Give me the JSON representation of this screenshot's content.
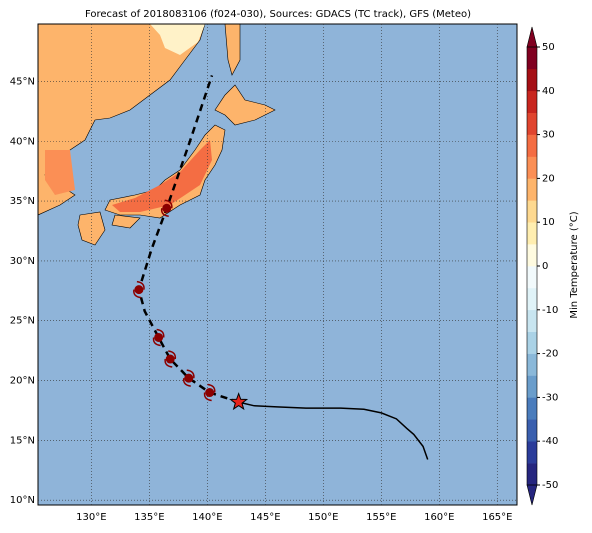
{
  "chart_data": {
    "type": "map",
    "title": "Forecast of 2018083106 (f024-030), Sources: GDACS (TC track), GFS (Meteo)",
    "xlim": [
      125.4,
      166.7
    ],
    "ylim": [
      9.6,
      49.8
    ],
    "grid": true,
    "xticks": [
      {
        "value": 130,
        "label": "130°E"
      },
      {
        "value": 135,
        "label": "135°E"
      },
      {
        "value": 140,
        "label": "140°E"
      },
      {
        "value": 145,
        "label": "145°E"
      },
      {
        "value": 150,
        "label": "150°E"
      },
      {
        "value": 155,
        "label": "155°E"
      },
      {
        "value": 160,
        "label": "160°E"
      },
      {
        "value": 165,
        "label": "165°E"
      }
    ],
    "yticks": [
      {
        "value": 10,
        "label": "10°N"
      },
      {
        "value": 15,
        "label": "15°N"
      },
      {
        "value": 20,
        "label": "20°N"
      },
      {
        "value": 25,
        "label": "25°N"
      },
      {
        "value": 30,
        "label": "30°N"
      },
      {
        "value": 35,
        "label": "35°N"
      },
      {
        "value": 40,
        "label": "40°N"
      },
      {
        "value": 45,
        "label": "45°N"
      }
    ],
    "past_track": {
      "style": "solid",
      "color": "#000000",
      "x": [
        159.0,
        158.6,
        157.8,
        157.2,
        156.3,
        155.0,
        153.5,
        151.5,
        148.5,
        146.0,
        144.0,
        142.7
      ],
      "y": [
        13.4,
        14.5,
        15.5,
        16.0,
        16.8,
        17.3,
        17.6,
        17.7,
        17.7,
        17.8,
        17.9,
        18.2
      ]
    },
    "forecast_track": {
      "style": "dashed",
      "color": "#000000",
      "x": [
        142.7,
        140.2,
        138.4,
        136.8,
        135.8,
        134.6,
        134.1,
        135.2,
        136.5,
        138.5,
        140.4
      ],
      "y": [
        18.2,
        19.0,
        20.2,
        21.8,
        23.6,
        25.8,
        27.6,
        31.0,
        34.4,
        40.0,
        45.5
      ]
    },
    "storm_positions": {
      "color": "#8b0000",
      "x": [
        140.2,
        138.4,
        136.8,
        135.8,
        134.1,
        136.5
      ],
      "y": [
        19.0,
        20.2,
        21.8,
        23.6,
        27.6,
        34.4
      ]
    },
    "current_position": {
      "color": "#e8241c",
      "x": 142.7,
      "y": 18.2
    },
    "colorbar": {
      "label": "Min Temperature (°C)",
      "lim": [
        -50,
        50
      ],
      "ticks": [
        -50,
        -40,
        -30,
        -20,
        -10,
        0,
        10,
        20,
        30,
        40,
        50
      ],
      "colors": [
        "#26267f",
        "#2b3c9a",
        "#3a5fae",
        "#4a7cbc",
        "#6a9dcb",
        "#8ab8d9",
        "#aad2e6",
        "#c8e5f0",
        "#e0f3f8",
        "#f2fafc",
        "#fffbe0",
        "#ffeeb0",
        "#fed990",
        "#fdb46b",
        "#fb8f55",
        "#f46d43",
        "#e0452f",
        "#c8261f",
        "#a50f15",
        "#800020"
      ]
    }
  }
}
